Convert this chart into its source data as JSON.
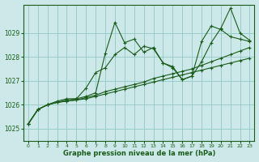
{
  "xlabel": "Graphe pression niveau de la mer (hPa)",
  "bg_color": "#cce8e8",
  "grid_color": "#99cccc",
  "line_color": "#1a5c1a",
  "xlim": [
    -0.5,
    23.5
  ],
  "ylim": [
    1024.5,
    1030.2
  ],
  "xticks": [
    0,
    1,
    2,
    3,
    4,
    5,
    6,
    7,
    8,
    9,
    10,
    11,
    12,
    13,
    14,
    15,
    16,
    17,
    18,
    19,
    20,
    21,
    22,
    23
  ],
  "yticks": [
    1025,
    1026,
    1027,
    1028,
    1029
  ],
  "series": [
    [
      1025.2,
      1025.8,
      1026.0,
      1026.1,
      1026.15,
      1026.2,
      1026.25,
      1026.35,
      1026.45,
      1026.55,
      1026.65,
      1026.75,
      1026.85,
      1026.95,
      1027.05,
      1027.15,
      1027.25,
      1027.35,
      1027.45,
      1027.55,
      1027.65,
      1027.75,
      1027.85,
      1027.95
    ],
    [
      1025.2,
      1025.8,
      1026.0,
      1026.1,
      1026.15,
      1026.2,
      1026.3,
      1026.4,
      1026.55,
      1026.65,
      1026.75,
      1026.85,
      1026.95,
      1027.1,
      1027.2,
      1027.3,
      1027.4,
      1027.5,
      1027.65,
      1027.8,
      1027.95,
      1028.1,
      1028.25,
      1028.4
    ],
    [
      1025.2,
      1025.8,
      1026.0,
      1026.1,
      1026.2,
      1026.25,
      1026.7,
      1027.35,
      1027.55,
      1028.1,
      1028.4,
      1028.1,
      1028.45,
      1028.35,
      1027.75,
      1027.6,
      1027.05,
      1027.2,
      1027.8,
      1028.6,
      1029.2,
      1030.05,
      1029.0,
      1028.7
    ],
    [
      1025.2,
      1025.8,
      1026.0,
      1026.15,
      1026.25,
      1026.25,
      1026.35,
      1026.5,
      1028.15,
      1029.45,
      1028.6,
      1028.75,
      1028.2,
      1028.4,
      1027.75,
      1027.55,
      1027.05,
      1027.2,
      1028.65,
      1029.3,
      1029.15,
      1028.85,
      1028.75,
      1028.65
    ]
  ]
}
